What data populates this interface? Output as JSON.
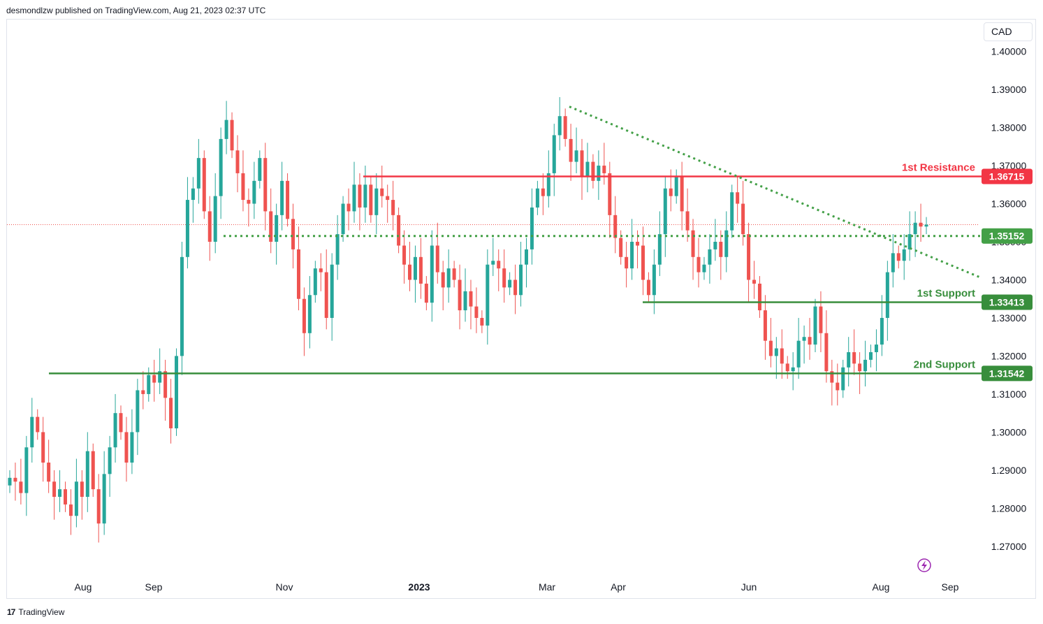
{
  "header": {
    "publisher": "desmondlzw published on TradingView.com, Aug 21, 2023 02:37 UTC"
  },
  "currency": "CAD",
  "footer": {
    "brand": "TradingView",
    "logo_icon": "tradingview-logo-icon"
  },
  "colors": {
    "up": "#26a69a",
    "down": "#ef5350",
    "resistance": "#f23645",
    "support": "#388e3c",
    "dotted": "#43a047",
    "price_line": "#ef5350"
  },
  "chart_data": {
    "type": "candlestick",
    "title": "",
    "ylim": [
      1.263,
      1.408
    ],
    "y_ticks": [
      "1.27000",
      "1.28000",
      "1.29000",
      "1.30000",
      "1.31000",
      "1.32000",
      "1.33000",
      "1.34000",
      "1.35000",
      "1.36000",
      "1.37000",
      "1.38000",
      "1.39000",
      "1.40000"
    ],
    "x_ticks": [
      "Aug",
      "Sep",
      "Nov",
      "2023",
      "Mar",
      "Apr",
      "Jun",
      "Aug",
      "Sep"
    ],
    "levels": [
      {
        "name": "1st Resistance",
        "value": "1.36715",
        "kind": "resistance"
      },
      {
        "name": "",
        "value": "1.35152",
        "kind": "pivot-dotted"
      },
      {
        "name": "1st Support",
        "value": "1.33413",
        "kind": "support"
      },
      {
        "name": "2nd Support",
        "value": "1.31542",
        "kind": "support"
      }
    ],
    "trendline": {
      "style": "dotted",
      "from_price": 1.3855,
      "to_price": 1.3405
    },
    "current_price": 1.3545,
    "closes": [
      1.288,
      1.287,
      1.284,
      1.296,
      1.304,
      1.3,
      1.292,
      1.287,
      1.283,
      1.285,
      1.281,
      1.278,
      1.287,
      1.283,
      1.295,
      1.285,
      1.276,
      1.289,
      1.296,
      1.305,
      1.3,
      1.292,
      1.3,
      1.311,
      1.31,
      1.315,
      1.313,
      1.316,
      1.309,
      1.301,
      1.32,
      1.346,
      1.361,
      1.364,
      1.372,
      1.358,
      1.35,
      1.362,
      1.377,
      1.382,
      1.374,
      1.368,
      1.361,
      1.36,
      1.366,
      1.372,
      1.358,
      1.35,
      1.357,
      1.366,
      1.356,
      1.348,
      1.335,
      1.326,
      1.336,
      1.343,
      1.342,
      1.33,
      1.344,
      1.352,
      1.36,
      1.358,
      1.365,
      1.359,
      1.365,
      1.357,
      1.364,
      1.362,
      1.361,
      1.357,
      1.349,
      1.344,
      1.34,
      1.346,
      1.339,
      1.334,
      1.349,
      1.342,
      1.338,
      1.343,
      1.34,
      1.332,
      1.337,
      1.333,
      1.33,
      1.328,
      1.344,
      1.345,
      1.343,
      1.338,
      1.34,
      1.336,
      1.344,
      1.348,
      1.359,
      1.364,
      1.362,
      1.368,
      1.378,
      1.383,
      1.377,
      1.371,
      1.374,
      1.367,
      1.371,
      1.366,
      1.37,
      1.368,
      1.357,
      1.351,
      1.346,
      1.343,
      1.35,
      1.349,
      1.34,
      1.336,
      1.344,
      1.352,
      1.364,
      1.362,
      1.367,
      1.358,
      1.353,
      1.346,
      1.342,
      1.344,
      1.348,
      1.35,
      1.346,
      1.353,
      1.363,
      1.36,
      1.352,
      1.34,
      1.339,
      1.332,
      1.324,
      1.32,
      1.322,
      1.318,
      1.316,
      1.317,
      1.324,
      1.325,
      1.323,
      1.333,
      1.326,
      1.316,
      1.313,
      1.311,
      1.317,
      1.321,
      1.318,
      1.316,
      1.319,
      1.321,
      1.323,
      1.33,
      1.342,
      1.347,
      1.345,
      1.348,
      1.352,
      1.355,
      1.354,
      1.3545
    ]
  }
}
